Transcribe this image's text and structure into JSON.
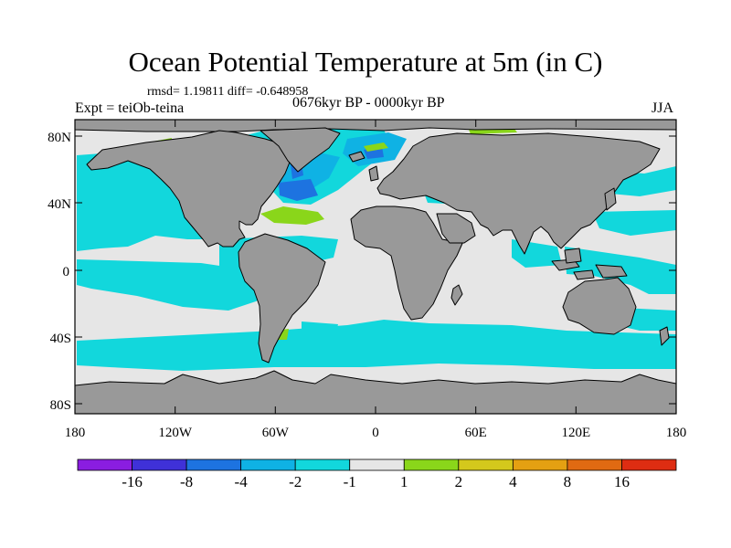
{
  "title": "Ocean Potential Temperature at 5m (in C)",
  "stats": "rmsd= 1.19811 diff= -0.648958",
  "experiment": "Expt = teiOb-teina",
  "period": "0676kyr BP - 0000kyr BP",
  "season": "JJA",
  "lat_ticks": [
    "80N",
    "40N",
    "0",
    "40S",
    "80S"
  ],
  "lon_ticks": [
    "180",
    "120W",
    "60W",
    "0",
    "60E",
    "120E",
    "180"
  ],
  "colorbar": {
    "labels": [
      "-16",
      "-8",
      "-4",
      "-2",
      "-1",
      "1",
      "2",
      "4",
      "8",
      "16"
    ],
    "colors": [
      "#8a1de0",
      "#3f31d8",
      "#1d73e0",
      "#0fb2e4",
      "#12d7dc",
      "#e6e6e6",
      "#8ad61a",
      "#d4c81c",
      "#e4a012",
      "#e06a12",
      "#de2d12"
    ]
  },
  "colors": {
    "land": "#999999",
    "ocean_zero": "#e6e6e6",
    "cyan": "#12d7dc",
    "light_blue": "#0fb2e4",
    "blue": "#1d73e0",
    "green": "#8ad61a"
  }
}
